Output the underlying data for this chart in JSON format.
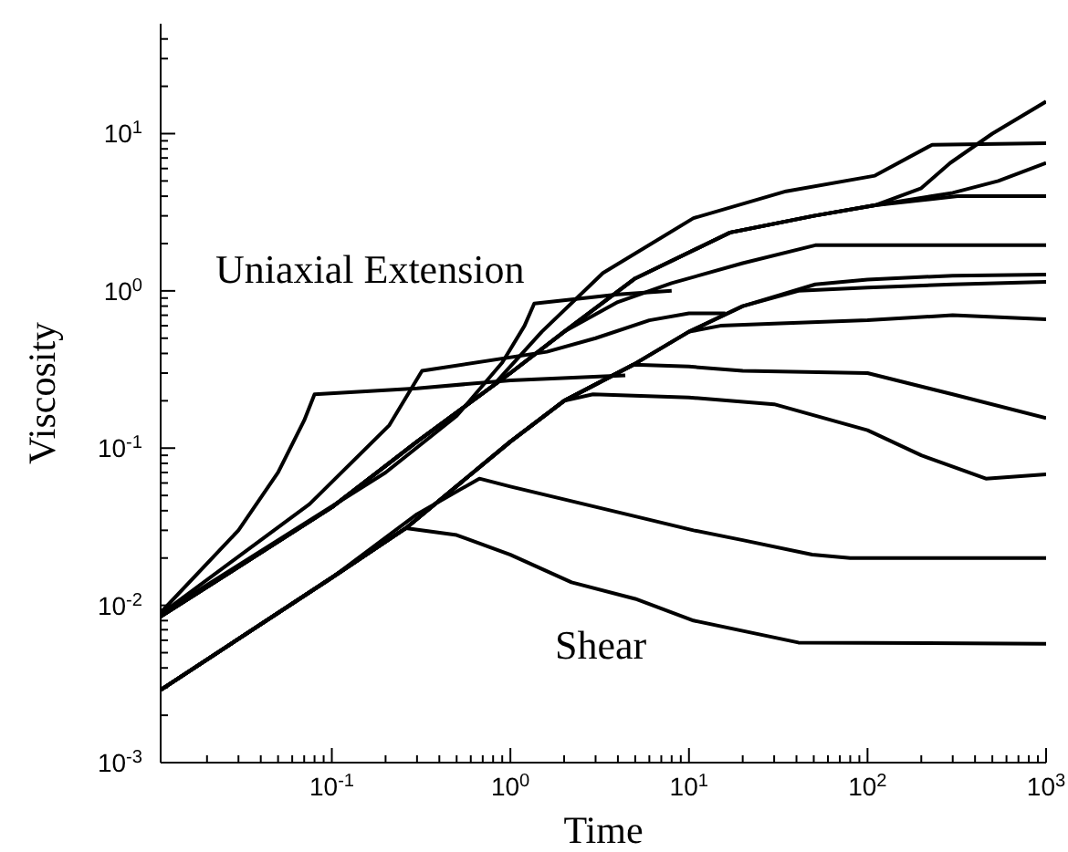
{
  "chart_data": {
    "type": "line",
    "xlabel": "Time",
    "ylabel": "Viscosity",
    "log": "xy",
    "line_style": "solid",
    "xlim": [
      0.011,
      1000
    ],
    "ylim": [
      0.001,
      50
    ],
    "xticks": [
      {
        "value": 0.02,
        "label": null
      },
      {
        "value": 0.03,
        "label": null
      },
      {
        "value": 0.04,
        "label": null
      },
      {
        "value": 0.05,
        "label": null
      },
      {
        "value": 0.06,
        "label": null
      },
      {
        "value": 0.07,
        "label": null
      },
      {
        "value": 0.08,
        "label": null
      },
      {
        "value": 0.09,
        "label": null
      },
      {
        "value": 0.1,
        "label": "10$^{-1}$"
      },
      {
        "value": 0.2,
        "label": null
      },
      {
        "value": 0.3,
        "label": null
      },
      {
        "value": 0.4,
        "label": null
      },
      {
        "value": 0.5,
        "label": null
      },
      {
        "value": 0.6,
        "label": null
      },
      {
        "value": 0.7,
        "label": null
      },
      {
        "value": 0.8,
        "label": null
      },
      {
        "value": 0.9,
        "label": null
      },
      {
        "value": 1,
        "label": "10$^{0}$"
      },
      {
        "value": 2,
        "label": null
      },
      {
        "value": 3,
        "label": null
      },
      {
        "value": 4,
        "label": null
      },
      {
        "value": 5,
        "label": null
      },
      {
        "value": 6,
        "label": null
      },
      {
        "value": 7,
        "label": null
      },
      {
        "value": 8,
        "label": null
      },
      {
        "value": 9,
        "label": null
      },
      {
        "value": 10,
        "label": "10$^{1}$"
      },
      {
        "value": 20,
        "label": null
      },
      {
        "value": 30,
        "label": null
      },
      {
        "value": 40,
        "label": null
      },
      {
        "value": 50,
        "label": null
      },
      {
        "value": 60,
        "label": null
      },
      {
        "value": 70,
        "label": null
      },
      {
        "value": 80,
        "label": null
      },
      {
        "value": 90,
        "label": null
      },
      {
        "value": 100,
        "label": "10$^{2}$"
      },
      {
        "value": 200,
        "label": null
      },
      {
        "value": 300,
        "label": null
      },
      {
        "value": 400,
        "label": null
      },
      {
        "value": 500,
        "label": null
      },
      {
        "value": 600,
        "label": null
      },
      {
        "value": 700,
        "label": null
      },
      {
        "value": 800,
        "label": null
      },
      {
        "value": 900,
        "label": null
      },
      {
        "value": 1000,
        "label": "10$^{3}$"
      }
    ],
    "yticks": [
      {
        "value": 0.001,
        "label": "10$^{-3}$"
      },
      {
        "value": 0.002,
        "label": null
      },
      {
        "value": 0.003,
        "label": null
      },
      {
        "value": 0.004,
        "label": null
      },
      {
        "value": 0.005,
        "label": null
      },
      {
        "value": 0.006,
        "label": null
      },
      {
        "value": 0.007,
        "label": null
      },
      {
        "value": 0.008,
        "label": null
      },
      {
        "value": 0.009,
        "label": null
      },
      {
        "value": 0.01,
        "label": "10$^{-2}$"
      },
      {
        "value": 0.02,
        "label": null
      },
      {
        "value": 0.03,
        "label": null
      },
      {
        "value": 0.04,
        "label": null
      },
      {
        "value": 0.05,
        "label": null
      },
      {
        "value": 0.06,
        "label": null
      },
      {
        "value": 0.07,
        "label": null
      },
      {
        "value": 0.08,
        "label": null
      },
      {
        "value": 0.09,
        "label": null
      },
      {
        "value": 0.1,
        "label": "10$^{-1}$"
      },
      {
        "value": 0.2,
        "label": null
      },
      {
        "value": 0.3,
        "label": null
      },
      {
        "value": 0.4,
        "label": null
      },
      {
        "value": 0.5,
        "label": null
      },
      {
        "value": 0.6,
        "label": null
      },
      {
        "value": 0.7,
        "label": null
      },
      {
        "value": 0.8,
        "label": null
      },
      {
        "value": 0.9,
        "label": null
      },
      {
        "value": 1,
        "label": "10$^{0}$"
      },
      {
        "value": 2,
        "label": null
      },
      {
        "value": 3,
        "label": null
      },
      {
        "value": 4,
        "label": null
      },
      {
        "value": 5,
        "label": null
      },
      {
        "value": 6,
        "label": null
      },
      {
        "value": 7,
        "label": null
      },
      {
        "value": 8,
        "label": null
      },
      {
        "value": 9,
        "label": null
      },
      {
        "value": 10,
        "label": "10$^{1}$"
      },
      {
        "value": 20,
        "label": null
      },
      {
        "value": 30,
        "label": null
      },
      {
        "value": 40,
        "label": null
      }
    ],
    "annotations": [
      "Uniaxial Extension",
      "Shear"
    ],
    "series": [
      {
        "color": "#000000",
        "x": [
          0.011,
          0.03,
          0.05,
          0.07,
          0.08,
          0.3,
          1,
          4.4
        ],
        "values": [
          0.009,
          0.03,
          0.07,
          0.15,
          0.22,
          0.24,
          0.27,
          0.29
        ]
      },
      {
        "color": "#000000",
        "x": [
          0.011,
          0.075,
          0.21,
          0.32,
          1.6,
          3,
          6,
          10,
          16
        ],
        "values": [
          0.0088,
          0.044,
          0.14,
          0.31,
          0.41,
          0.5,
          0.65,
          0.72,
          0.72
        ]
      },
      {
        "color": "#000000",
        "x": [
          0.011,
          0.2,
          0.5,
          0.9,
          1.2,
          1.36,
          4,
          8
        ],
        "values": [
          0.0088,
          0.07,
          0.16,
          0.35,
          0.6,
          0.83,
          0.95,
          1.0
        ]
      },
      {
        "color": "#000000",
        "x": [
          0.011,
          0.1,
          0.3,
          1,
          2,
          5,
          17,
          50,
          110,
          200,
          290,
          500,
          1000
        ],
        "values": [
          0.0085,
          0.042,
          0.11,
          0.3,
          0.55,
          1.2,
          2.35,
          3.0,
          3.5,
          4.5,
          6.5,
          10,
          16
        ]
      },
      {
        "color": "#000000",
        "x": [
          0.011,
          0.1,
          0.3,
          1,
          2,
          5,
          17,
          50,
          110,
          300,
          540,
          1000
        ],
        "values": [
          0.0085,
          0.042,
          0.11,
          0.3,
          0.55,
          1.2,
          2.35,
          3.0,
          3.5,
          4.2,
          5.0,
          6.5
        ]
      },
      {
        "color": "#000000",
        "x": [
          0.011,
          0.1,
          0.3,
          1,
          2,
          5,
          17,
          50,
          110,
          320,
          1000
        ],
        "values": [
          0.0085,
          0.042,
          0.11,
          0.3,
          0.55,
          1.2,
          2.35,
          3.0,
          3.5,
          4.0,
          4.0
        ]
      },
      {
        "color": "#000000",
        "x": [
          0.011,
          0.1,
          0.3,
          0.8,
          1.5,
          3.3,
          10.6,
          35,
          110,
          230,
          1000
        ],
        "values": [
          0.0085,
          0.042,
          0.11,
          0.25,
          0.55,
          1.3,
          2.9,
          4.3,
          5.4,
          8.5,
          8.7
        ]
      },
      {
        "color": "#000000",
        "x": [
          0.011,
          0.1,
          0.3,
          1,
          2,
          4,
          8,
          20,
          51,
          1000
        ],
        "values": [
          0.0085,
          0.042,
          0.11,
          0.3,
          0.55,
          0.85,
          1.12,
          1.5,
          1.95,
          1.95
        ]
      },
      {
        "color": "#000000",
        "x": [
          0.011,
          0.1,
          0.26,
          0.5,
          1,
          2.2,
          5,
          10.6,
          41,
          1000
        ],
        "values": [
          0.0029,
          0.015,
          0.031,
          0.028,
          0.021,
          0.014,
          0.011,
          0.008,
          0.0058,
          0.0057
        ]
      },
      {
        "color": "#000000",
        "x": [
          0.011,
          0.1,
          0.3,
          0.67,
          1,
          4.9,
          10.6,
          20,
          49,
          80,
          1000
        ],
        "values": [
          0.0029,
          0.015,
          0.038,
          0.064,
          0.057,
          0.037,
          0.03,
          0.026,
          0.021,
          0.02,
          0.02
        ]
      },
      {
        "color": "#000000",
        "x": [
          0.011,
          0.1,
          0.26,
          1,
          2,
          2.9,
          10,
          30,
          100,
          200,
          460,
          1000
        ],
        "values": [
          0.0029,
          0.015,
          0.031,
          0.11,
          0.2,
          0.22,
          0.21,
          0.19,
          0.13,
          0.09,
          0.064,
          0.068
        ]
      },
      {
        "color": "#000000",
        "x": [
          0.011,
          0.1,
          0.26,
          1,
          2,
          4.9,
          10,
          20,
          100,
          300,
          1000
        ],
        "values": [
          0.0029,
          0.015,
          0.031,
          0.11,
          0.2,
          0.34,
          0.33,
          0.31,
          0.3,
          0.22,
          0.155
        ]
      },
      {
        "color": "#000000",
        "x": [
          0.011,
          0.1,
          0.26,
          1,
          2,
          4.9,
          10,
          15,
          30,
          100,
          300,
          1000
        ],
        "values": [
          0.0029,
          0.015,
          0.031,
          0.11,
          0.2,
          0.34,
          0.55,
          0.6,
          0.62,
          0.65,
          0.7,
          0.66
        ]
      },
      {
        "color": "#000000",
        "x": [
          0.011,
          0.1,
          0.26,
          1,
          2,
          4.9,
          10,
          20,
          41,
          100,
          300,
          1000
        ],
        "values": [
          0.0029,
          0.015,
          0.031,
          0.11,
          0.2,
          0.34,
          0.55,
          0.8,
          1.0,
          1.05,
          1.1,
          1.14
        ]
      },
      {
        "color": "#000000",
        "x": [
          0.011,
          0.1,
          0.26,
          1,
          2,
          4.9,
          10,
          20,
          51,
          100,
          300,
          1000
        ],
        "values": [
          0.0029,
          0.015,
          0.031,
          0.11,
          0.2,
          0.34,
          0.55,
          0.8,
          1.1,
          1.18,
          1.25,
          1.27
        ]
      }
    ]
  }
}
